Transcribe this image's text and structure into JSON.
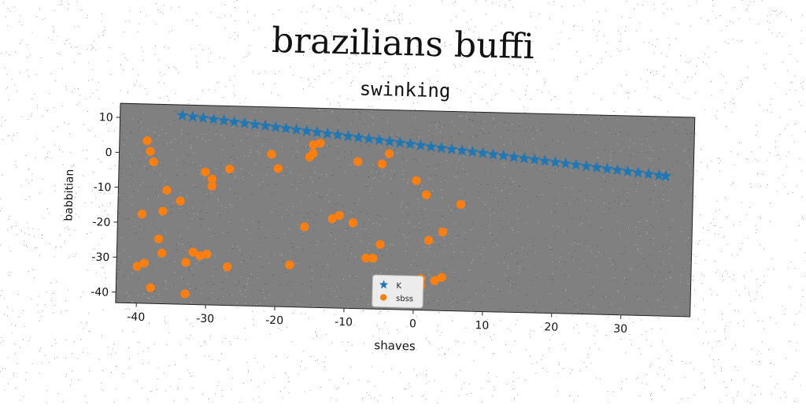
{
  "suptitle": "brazilians buffi",
  "chart_data": {
    "type": "scatter",
    "title": "swinking",
    "xlabel": "shaves",
    "ylabel": "babbitian",
    "xlim": [
      -43,
      40
    ],
    "ylim": [
      -43,
      14
    ],
    "xticks": [
      -40,
      -30,
      -20,
      -10,
      0,
      10,
      20,
      30
    ],
    "yticks": [
      10,
      0,
      -10,
      -20,
      -30,
      -40
    ],
    "background": "#808080",
    "grid": false,
    "legend_position": "bottom-center",
    "series": [
      {
        "name": "K",
        "marker": "star",
        "color": "#1f77b4",
        "x": [
          -34,
          -32.5,
          -31,
          -29.5,
          -28,
          -26.5,
          -25,
          -23.5,
          -22,
          -20.5,
          -19,
          -17.5,
          -16,
          -14.5,
          -13,
          -11.5,
          -10,
          -8.5,
          -7,
          -5.5,
          -4,
          -2.5,
          -1,
          0.5,
          2,
          3.5,
          5,
          6.5,
          8,
          9.5,
          11,
          12.5,
          14,
          15.5,
          17,
          18.5,
          20,
          21.5,
          23,
          24.5,
          26,
          27.5,
          29,
          30.5,
          32,
          33.5,
          35,
          36
        ],
        "y": [
          11,
          10.7,
          10.4,
          10.1,
          9.8,
          9.5,
          9.2,
          8.9,
          8.6,
          8.3,
          8,
          7.7,
          7.4,
          7.1,
          6.8,
          6.5,
          6.2,
          5.9,
          5.6,
          5.3,
          5,
          4.7,
          4.4,
          4.1,
          3.8,
          3.5,
          3.2,
          2.9,
          2.6,
          2.3,
          2,
          1.7,
          1.4,
          1.1,
          0.8,
          0.5,
          0.2,
          -0.1,
          -0.4,
          -0.7,
          -1,
          -1.3,
          -1.6,
          -1.9,
          -2.2,
          -2.5,
          -2.8,
          -3
        ]
      },
      {
        "name": "sbss",
        "marker": "circle",
        "color": "#ff7f0e",
        "x": [
          -39,
          -38.5,
          -38,
          -36,
          -39.5,
          -37,
          -40,
          -38,
          -36.5,
          -34,
          -32,
          -30.5,
          -29.5,
          -29.5,
          -27,
          -31,
          -30,
          -33,
          -27,
          -33,
          -36.5,
          -39,
          -21,
          -20,
          -15.5,
          -15,
          -14,
          -16,
          -15,
          -18,
          -12,
          -11,
          -9,
          -8.5,
          -7,
          -5,
          -4,
          -5,
          -6,
          0,
          1,
          1.5,
          6.5,
          2,
          4,
          1,
          3,
          4
        ],
        "y": [
          3.5,
          0.5,
          -2.5,
          -10.5,
          -17.5,
          -24.5,
          -32.5,
          -38.5,
          -16.5,
          -13.5,
          -28,
          -5,
          -7,
          -9,
          -4,
          -29,
          -28.5,
          -31,
          -32,
          -40,
          -28.5,
          -31.5,
          0.5,
          -3.5,
          0,
          3.5,
          4,
          -20,
          1,
          -31,
          -17.5,
          -16.5,
          -18.5,
          -1,
          -28.5,
          -1.5,
          1.5,
          -24.5,
          -28.5,
          -6,
          -36,
          -10,
          -12.5,
          -23,
          -20.5,
          -34,
          -34.5,
          -33.5
        ]
      }
    ]
  }
}
